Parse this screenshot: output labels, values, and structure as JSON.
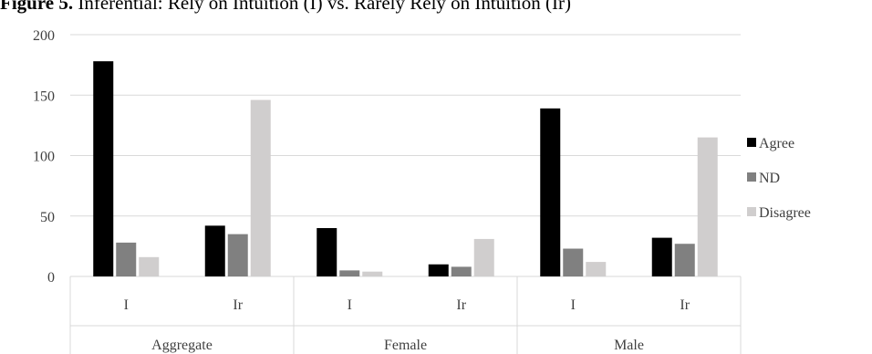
{
  "figure": {
    "label": "Figure 5.",
    "caption": "Inferential: Rely on Intuition (I) vs. Rarely Rely on Intuition (Ir)"
  },
  "chart_data": {
    "type": "bar",
    "title": "Figure 5. Inferential: Rely on Intuition (I) vs. Rarely Rely on Intuition (Ir)",
    "xlabel": "",
    "ylabel": "",
    "ylim": [
      0,
      200
    ],
    "yticks": [
      0,
      50,
      100,
      150,
      200
    ],
    "grid": true,
    "legend_position": "right",
    "groups": [
      {
        "label": "Aggregate",
        "categories": [
          "I",
          "Ir"
        ]
      },
      {
        "label": "Female",
        "categories": [
          "I",
          "Ir"
        ]
      },
      {
        "label": "Male",
        "categories": [
          "I",
          "Ir"
        ]
      }
    ],
    "categories": [
      "Aggregate I",
      "Aggregate Ir",
      "Female I",
      "Female Ir",
      "Male I",
      "Male Ir"
    ],
    "series": [
      {
        "name": "Agree",
        "color": "#000000",
        "values": [
          178,
          42,
          40,
          10,
          139,
          32
        ]
      },
      {
        "name": "ND",
        "color": "#808080",
        "values": [
          28,
          35,
          5,
          8,
          23,
          27
        ]
      },
      {
        "name": "Disagree",
        "color": "#d0cece",
        "values": [
          16,
          146,
          4,
          31,
          12,
          115
        ]
      }
    ]
  }
}
